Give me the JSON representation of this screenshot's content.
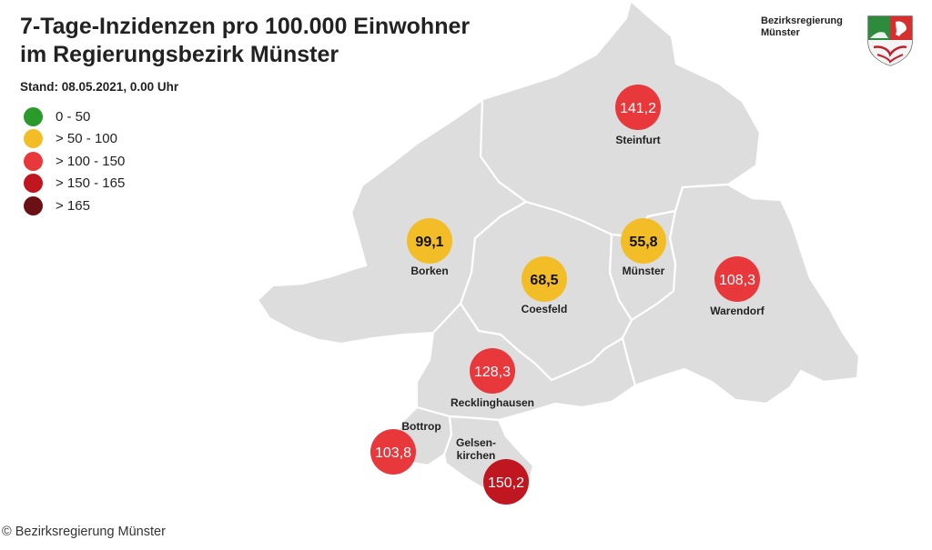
{
  "title_line1": "7-Tage-Inzidenzen pro 100.000 Einwohner",
  "title_line2": "im Regierungsbezirk Münster",
  "stand": "Stand: 08.05.2021, 0.00 Uhr",
  "authority_line1": "Bezirksregierung",
  "authority_line2": "Münster",
  "crest_icon": "nrw-coat-of-arms-icon",
  "copyright": "© Bezirksregierung Münster",
  "colors": {
    "region_fill": "#dddddd",
    "region_border": "#ffffff",
    "green": "#2a9a2a",
    "yellow": "#f2bd27",
    "red": "#e8383b",
    "dark_red": "#c01620",
    "darkest_red": "#6b1015"
  },
  "legend": [
    {
      "label": "0 - 50",
      "color": "#2a9a2a"
    },
    {
      "label": "> 50 - 100",
      "color": "#f2bd27"
    },
    {
      "label": "> 100 - 150",
      "color": "#e8383b"
    },
    {
      "label": "> 150 - 165",
      "color": "#c01620"
    },
    {
      "label": "> 165",
      "color": "#6b1015"
    }
  ],
  "regions": [
    {
      "name": "Steinfurt",
      "label_lines": [
        "Steinfurt"
      ],
      "value": "141,2",
      "color": "#e8383b",
      "text_color": "#ffffff"
    },
    {
      "name": "Borken",
      "label_lines": [
        "Borken"
      ],
      "value": "99,1",
      "color": "#f2bd27",
      "text_color": "#111111"
    },
    {
      "name": "Münster",
      "label_lines": [
        "Münster"
      ],
      "value": "55,8",
      "color": "#f2bd27",
      "text_color": "#111111"
    },
    {
      "name": "Coesfeld",
      "label_lines": [
        "Coesfeld"
      ],
      "value": "68,5",
      "color": "#f2bd27",
      "text_color": "#111111"
    },
    {
      "name": "Warendorf",
      "label_lines": [
        "Warendorf"
      ],
      "value": "108,3",
      "color": "#e8383b",
      "text_color": "#ffffff"
    },
    {
      "name": "Recklinghausen",
      "label_lines": [
        "Recklinghausen"
      ],
      "value": "128,3",
      "color": "#e8383b",
      "text_color": "#ffffff"
    },
    {
      "name": "Bottrop",
      "label_lines": [
        "Bottrop"
      ],
      "value": "103,8",
      "color": "#e8383b",
      "text_color": "#ffffff"
    },
    {
      "name": "Gelsenkirchen",
      "label_lines": [
        "Gelsen-",
        "kirchen"
      ],
      "value": "150,2",
      "color": "#c01620",
      "text_color": "#ffffff"
    }
  ]
}
